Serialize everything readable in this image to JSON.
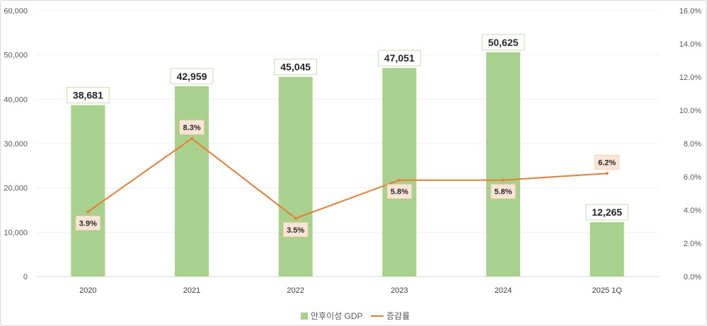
{
  "chart_data": {
    "type": "bar",
    "categories": [
      "2020",
      "2021",
      "2022",
      "2023",
      "2024",
      "2025 1Q"
    ],
    "series": [
      {
        "name": "안후이성 GDP",
        "type": "bar",
        "axis": "left",
        "values": [
          38681,
          42959,
          45045,
          47051,
          50625,
          12265
        ],
        "labels": [
          "38,681",
          "42,959",
          "45,045",
          "47,051",
          "50,625",
          "12,265"
        ],
        "color": "#a9d18e"
      },
      {
        "name": "증감률",
        "type": "line",
        "axis": "right",
        "values": [
          3.9,
          8.3,
          3.5,
          5.8,
          5.8,
          6.2
        ],
        "labels": [
          "3.9%",
          "8.3%",
          "3.5%",
          "5.8%",
          "5.8%",
          "6.2%"
        ],
        "color": "#ed7d31"
      }
    ],
    "y_left": {
      "min": 0,
      "max": 60000,
      "ticks": [
        0,
        10000,
        20000,
        30000,
        40000,
        50000,
        60000
      ],
      "tick_labels": [
        "0",
        "10,000",
        "20,000",
        "30,000",
        "40,000",
        "50,000",
        "60,000"
      ]
    },
    "y_right": {
      "min": 0,
      "max": 16,
      "ticks": [
        0,
        2,
        4,
        6,
        8,
        10,
        12,
        14,
        16
      ],
      "tick_labels": [
        "0.0%",
        "2.0%",
        "4.0%",
        "6.0%",
        "8.0%",
        "10.0%",
        "12.0%",
        "14.0%",
        "16.0%"
      ]
    },
    "grid": true,
    "legend": "bottom-center",
    "title": "",
    "xlabel": "",
    "ylabel": ""
  }
}
